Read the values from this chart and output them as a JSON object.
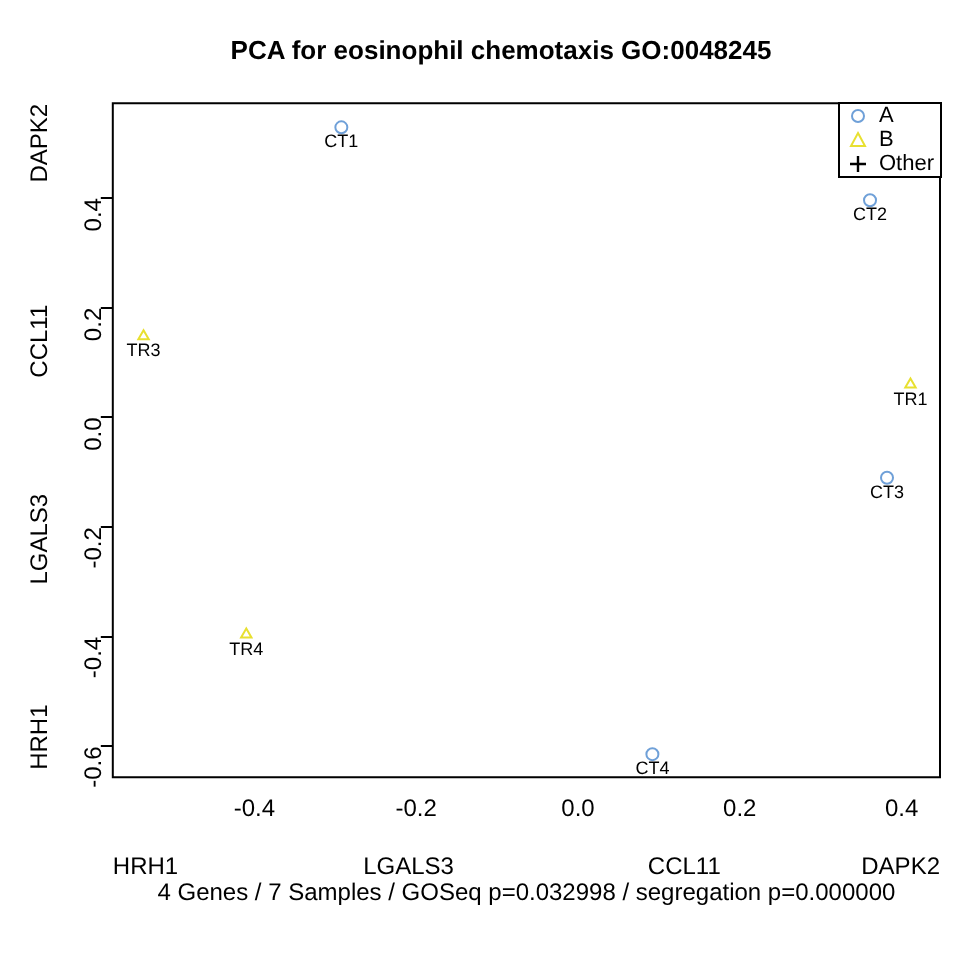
{
  "chart_data": {
    "type": "scatter",
    "title": "PCA for eosinophil chemotaxis GO:0048245",
    "xlim": [
      -0.575,
      0.4475
    ],
    "xticks": [
      -0.4,
      -0.2,
      {
        "value": 0,
        "label": "0.0"
      },
      0.2,
      0.4
    ],
    "ylim": [
      -0.656,
      0.573
    ],
    "yticks": [
      -0.6,
      -0.4,
      -0.2,
      {
        "value": 0,
        "label": "0.0"
      },
      0.2,
      0.4
    ],
    "grid": false,
    "legend": "top right",
    "series": [
      {
        "name": "A",
        "color": "#6fa0d8",
        "marker": "circle",
        "x": [
          -0.2925,
          0.361,
          0.382,
          0.092
        ],
        "values": [
          0.529,
          0.396,
          -0.11,
          -0.614
        ]
      },
      {
        "name": "B",
        "color": "#e8e030",
        "marker": "triangle",
        "x": [
          -0.537,
          0.411,
          -0.41
        ],
        "values": [
          0.148,
          0.06,
          -0.396
        ]
      },
      {
        "name": "Other",
        "color": "#000000",
        "marker": "cross"
      }
    ],
    "annotations": [
      {
        "text": "CT1",
        "x": -0.2925,
        "y": 0.529
      },
      {
        "text": "CT2",
        "x": 0.361,
        "y": 0.396
      },
      {
        "text": "CT3",
        "x": 0.382,
        "y": -0.11
      },
      {
        "text": "CT4",
        "x": 0.092,
        "y": -0.614
      },
      {
        "text": "TR3",
        "x": -0.537,
        "y": 0.148
      },
      {
        "text": "TR1",
        "x": 0.411,
        "y": 0.06
      },
      {
        "text": "TR4",
        "x": -0.41,
        "y": -0.396
      },
      "DAPK2",
      "CCL11",
      "LGALS3",
      "HRH1",
      "HRH1",
      "LGALS3",
      "CCL11",
      "DAPK2",
      "4 Genes / 7 Samples / GOSeq p=0.032998 / segregation p=0.000000"
    ]
  }
}
